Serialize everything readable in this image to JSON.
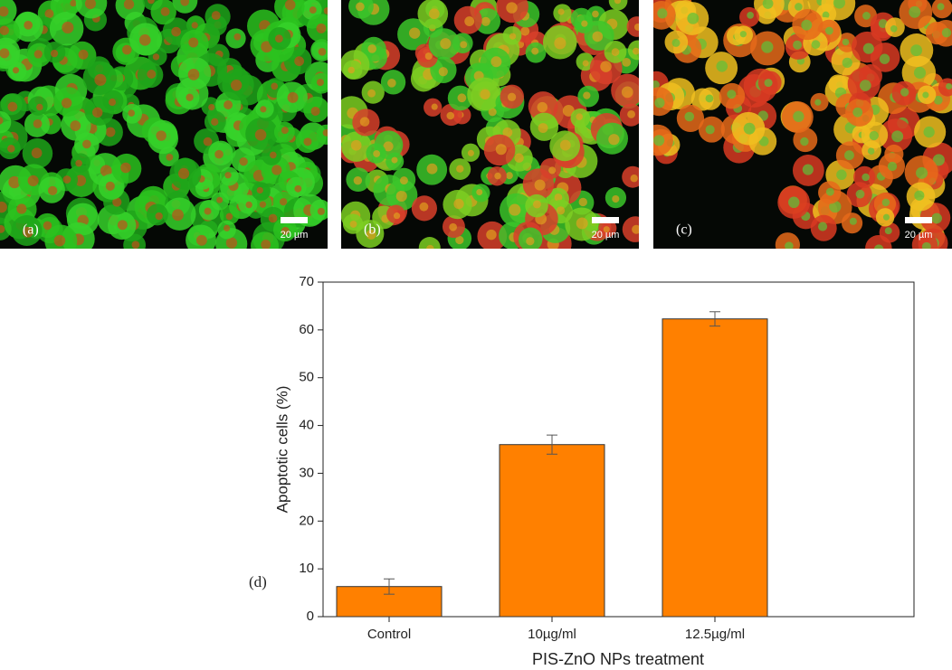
{
  "images": [
    {
      "label": "(a)",
      "scale": "20 µm",
      "palette": [
        "#1fa51a",
        "#2bc21f",
        "#36d22a",
        "#c0501a"
      ]
    },
    {
      "label": "(b)",
      "scale": "20 µm",
      "palette": [
        "#3cc52a",
        "#7ccf22",
        "#d8402a",
        "#e0a020"
      ]
    },
    {
      "label": "(c)",
      "scale": "20 µm",
      "palette": [
        "#f0c020",
        "#e66a1a",
        "#d83a22",
        "#5cc23a"
      ]
    }
  ],
  "chart_data": {
    "type": "bar",
    "panel_label": "(d)",
    "x_label": "PIS-ZnO NPs treatment",
    "y_label": "Apoptotic cells (%)",
    "categories": [
      "Control",
      "10µg/ml",
      "12.5µg/ml"
    ],
    "values": [
      6.3,
      36,
      62.3
    ],
    "errors": [
      1.6,
      2,
      1.5
    ],
    "color": "#ff8000",
    "ylim": [
      0,
      70
    ],
    "yticks": [
      0,
      10,
      20,
      30,
      40,
      50,
      60,
      70
    ]
  }
}
